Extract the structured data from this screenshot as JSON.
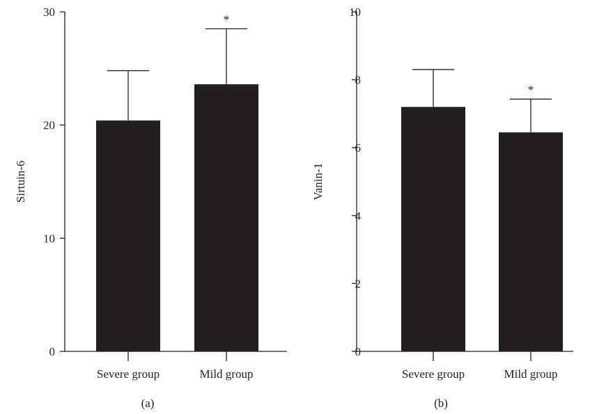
{
  "chart_data": [
    {
      "type": "bar",
      "panel_label": "(a)",
      "categories": [
        "Severe group",
        "Mild group"
      ],
      "values": [
        20.4,
        23.6
      ],
      "error_upper": [
        24.8,
        28.5
      ],
      "significance": [
        "",
        "*"
      ],
      "ylabel": "Sirtuin-6",
      "ylim": [
        0,
        30
      ],
      "yticks": [
        0,
        10,
        20,
        30
      ],
      "grid": false
    },
    {
      "type": "bar",
      "panel_label": "(b)",
      "categories": [
        "Severe group",
        "Mild group"
      ],
      "values": [
        7.2,
        6.45
      ],
      "error_upper": [
        8.3,
        7.43
      ],
      "significance": [
        "",
        "*"
      ],
      "ylabel": "Vanin-1",
      "ylim": [
        0,
        10
      ],
      "yticks": [
        0,
        2,
        4,
        6,
        8,
        10
      ],
      "grid": false
    }
  ],
  "colors": {
    "bar": "#231f20",
    "axis": "#231f20",
    "background": "#ffffff"
  }
}
